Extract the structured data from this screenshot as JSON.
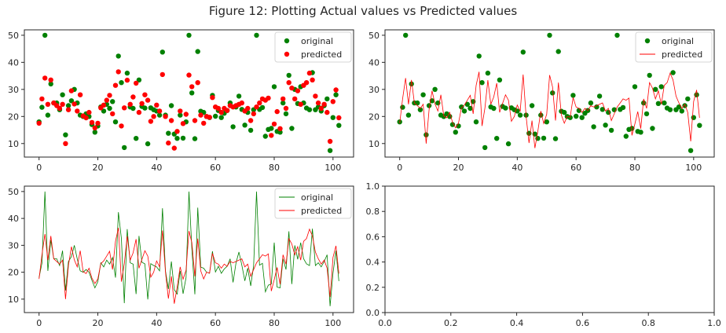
{
  "figure": {
    "suptitle": "Figure 12: Plotting Actual values vs Predicted values"
  },
  "chart_data": [
    {
      "type": "scatter",
      "panel": "top-left",
      "xlim": [
        -5,
        107
      ],
      "ylim": [
        5,
        52
      ],
      "xticks": [
        0,
        20,
        40,
        60,
        80,
        100
      ],
      "yticks": [
        10,
        20,
        30,
        40,
        50
      ],
      "legend": {
        "placement": "top-right",
        "entries": [
          "original",
          "predicted"
        ]
      },
      "series": [
        {
          "name": "original",
          "style": "scatter",
          "color": "#008000",
          "x": [
            0,
            1,
            2,
            3,
            4,
            5,
            6,
            7,
            8,
            9,
            10,
            11,
            12,
            13,
            14,
            15,
            16,
            17,
            18,
            19,
            20,
            21,
            22,
            23,
            24,
            25,
            26,
            27,
            28,
            29,
            30,
            31,
            32,
            33,
            34,
            35,
            36,
            37,
            38,
            39,
            40,
            41,
            42,
            43,
            44,
            45,
            46,
            47,
            48,
            49,
            50,
            51,
            52,
            53,
            54,
            55,
            56,
            57,
            58,
            59,
            60,
            61,
            62,
            63,
            64,
            65,
            66,
            67,
            68,
            69,
            70,
            71,
            72,
            73,
            74,
            75,
            76,
            77,
            78,
            79,
            80,
            81,
            82,
            83,
            84,
            85,
            86,
            87,
            88,
            89,
            90,
            91,
            92,
            93,
            94,
            95,
            96,
            97,
            98,
            99,
            100,
            101,
            102
          ],
          "y": [
            18,
            23.4,
            50,
            20.5,
            32,
            25,
            25,
            22.5,
            28,
            13.2,
            24,
            25.8,
            30,
            25,
            20.5,
            20,
            21,
            20,
            17,
            14.2,
            16.5,
            23.5,
            22,
            24.5,
            23,
            25.5,
            18,
            42.3,
            32.5,
            8.5,
            36,
            23.5,
            23,
            11.9,
            33.5,
            23.7,
            23.1,
            9.9,
            23.2,
            22.5,
            22,
            20.5,
            43.8,
            20.5,
            13.8,
            24,
            13.5,
            11.9,
            20.5,
            12,
            18,
            50,
            28.7,
            11.8,
            44,
            21.9,
            21.5,
            20,
            19.6,
            27.8,
            20.1,
            22.2,
            19.6,
            21.2,
            22.2,
            25,
            16.2,
            23.5,
            27.5,
            22.6,
            16.8,
            21.5,
            14.9,
            22.5,
            50,
            22.6,
            23.3,
            12.7,
            15.2,
            15.6,
            31,
            14.5,
            14.2,
            25,
            21,
            35.2,
            15.6,
            30,
            24.8,
            31,
            25,
            23.1,
            22.5,
            36.2,
            22.5,
            23.5,
            22,
            24,
            26.5,
            7.4,
            19.6,
            28,
            16.7
          ]
        },
        {
          "name": "predicted",
          "style": "scatter",
          "color": "#ff0000",
          "x": [
            0,
            1,
            2,
            3,
            4,
            5,
            6,
            7,
            8,
            9,
            10,
            11,
            12,
            13,
            14,
            15,
            16,
            17,
            18,
            19,
            20,
            21,
            22,
            23,
            24,
            25,
            26,
            27,
            28,
            29,
            30,
            31,
            32,
            33,
            34,
            35,
            36,
            37,
            38,
            39,
            40,
            41,
            42,
            43,
            44,
            45,
            46,
            47,
            48,
            49,
            50,
            51,
            52,
            53,
            54,
            55,
            56,
            57,
            58,
            59,
            60,
            61,
            62,
            63,
            64,
            65,
            66,
            67,
            68,
            69,
            70,
            71,
            72,
            73,
            74,
            75,
            76,
            77,
            78,
            79,
            80,
            81,
            82,
            83,
            84,
            85,
            86,
            87,
            88,
            89,
            90,
            91,
            92,
            93,
            94,
            95,
            96,
            97,
            98,
            99,
            100,
            101,
            102
          ],
          "y": [
            17.5,
            26.5,
            34.2,
            24.5,
            33.5,
            25,
            24,
            23,
            24.5,
            10,
            22.5,
            29.5,
            24.6,
            22,
            28,
            20.2,
            19.5,
            21.5,
            17.8,
            15.8,
            17.5,
            23.2,
            24.2,
            26,
            27.8,
            21,
            31.5,
            36.5,
            16.5,
            23.2,
            33.4,
            24.5,
            27.2,
            32.3,
            21.5,
            24.8,
            28,
            26,
            18.2,
            20,
            24.2,
            22,
            35.5,
            20,
            10.2,
            18.5,
            8.3,
            14.5,
            22,
            17.4,
            20.8,
            35.3,
            31,
            18.5,
            32.5,
            20.5,
            17.5,
            20,
            19.7,
            27,
            23.5,
            23,
            21.5,
            23,
            22.2,
            24,
            23.5,
            24,
            24.5,
            25,
            22,
            23,
            18.5,
            21,
            23.5,
            25,
            26.5,
            26,
            26.8,
            13,
            17.2,
            21.8,
            15.5,
            26.5,
            23,
            32.5,
            30.5,
            26.5,
            29.5,
            24.5,
            31.5,
            32.5,
            36,
            33.5,
            27.5,
            25,
            23,
            24.5,
            21.5,
            10.8,
            25.5,
            29.8,
            19.5
          ]
        }
      ]
    },
    {
      "type": "scatter",
      "panel": "top-right",
      "xlim": [
        -5,
        107
      ],
      "ylim": [
        5,
        52
      ],
      "xticks": [
        0,
        20,
        40,
        60,
        80,
        100
      ],
      "yticks": [
        10,
        20,
        30,
        40,
        50
      ],
      "legend": {
        "placement": "top-right",
        "entries": [
          "original",
          "predicted"
        ]
      },
      "series": [
        {
          "name": "original",
          "style": "scatter",
          "color": "#008000",
          "ref": "original"
        },
        {
          "name": "predicted",
          "style": "line",
          "color": "#ff0000",
          "ref": "predicted"
        }
      ]
    },
    {
      "type": "line",
      "panel": "bottom-left",
      "xlim": [
        -5,
        107
      ],
      "ylim": [
        5,
        52
      ],
      "xticks": [
        0,
        20,
        40,
        60,
        80,
        100
      ],
      "yticks": [
        10,
        20,
        30,
        40,
        50
      ],
      "legend": {
        "placement": "top-right",
        "entries": [
          "original",
          "predicted"
        ]
      },
      "series": [
        {
          "name": "original",
          "style": "line",
          "color": "#008000",
          "ref": "original"
        },
        {
          "name": "predicted",
          "style": "line",
          "color": "#ff0000",
          "ref": "predicted"
        }
      ]
    },
    {
      "type": "line",
      "panel": "bottom-right",
      "empty": true,
      "xlim": [
        0,
        1
      ],
      "ylim": [
        0,
        1
      ],
      "xticks": [
        0.0,
        0.2,
        0.4,
        0.6,
        0.8,
        1.0
      ],
      "yticks": [
        0.0,
        0.2,
        0.4,
        0.6,
        0.8,
        1.0
      ],
      "series": []
    }
  ]
}
